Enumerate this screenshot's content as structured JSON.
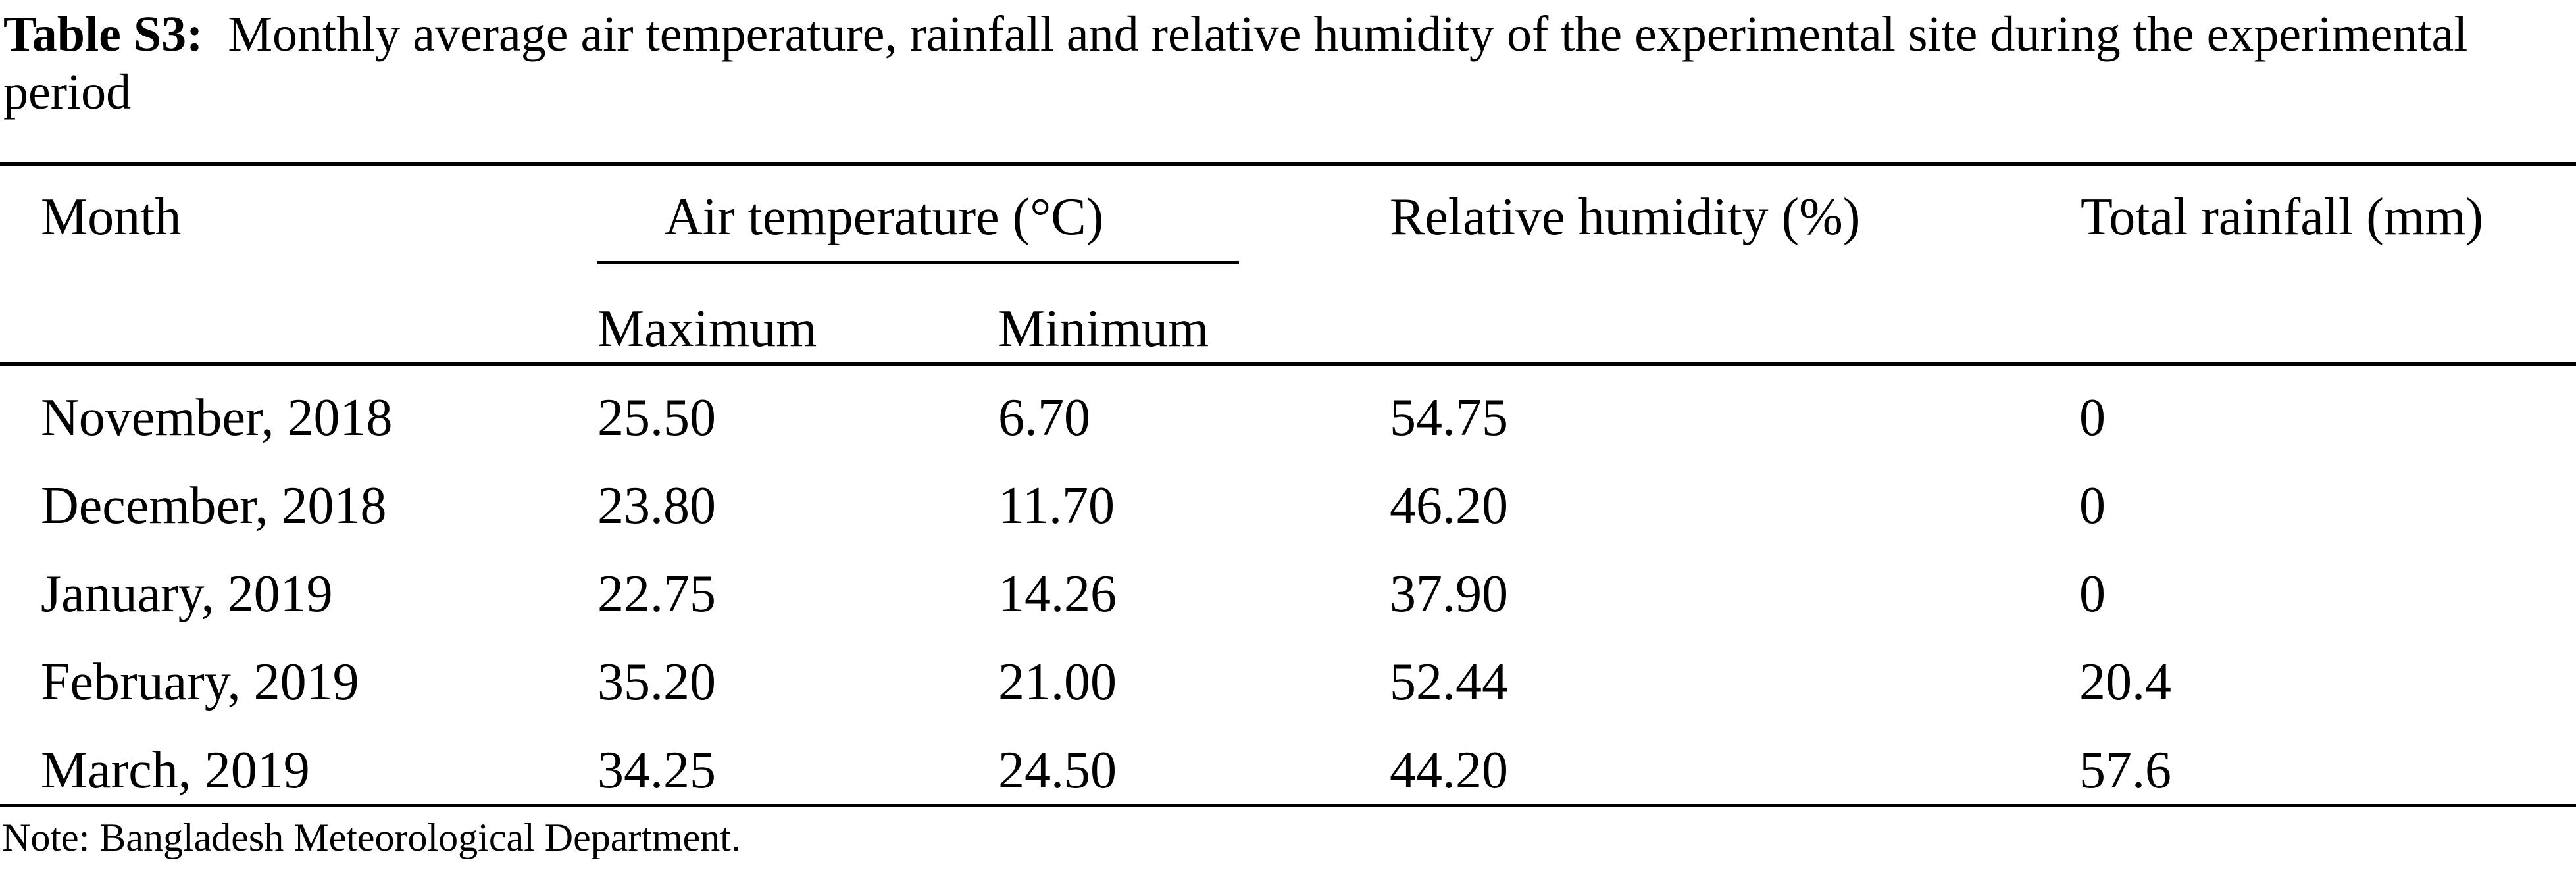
{
  "caption": {
    "label": "Table S3:",
    "text": "Monthly average air temperature, rainfall and relative humidity of the experimental site during the experimental period"
  },
  "headers": {
    "month": "Month",
    "air_temperature": "Air temperature (°C)",
    "maximum": "Maximum",
    "minimum": "Minimum",
    "relative_humidity": "Relative humidity (%)",
    "total_rainfall": "Total rainfall (mm)"
  },
  "rows": [
    {
      "month": "November, 2018",
      "max": "25.50",
      "min": "6.70",
      "rh": "54.75",
      "rain": "0"
    },
    {
      "month": "December, 2018",
      "max": "23.80",
      "min": "11.70",
      "rh": "46.20",
      "rain": "0"
    },
    {
      "month": "January, 2019",
      "max": "22.75",
      "min": "14.26",
      "rh": "37.90",
      "rain": "0"
    },
    {
      "month": "February, 2019",
      "max": "35.20",
      "min": "21.00",
      "rh": "52.44",
      "rain": "20.4"
    },
    {
      "month": "March, 2019",
      "max": "34.25",
      "min": "24.50",
      "rh": "44.20",
      "rain": "57.6"
    }
  ],
  "note": "Note: Bangladesh Meteorological Department."
}
